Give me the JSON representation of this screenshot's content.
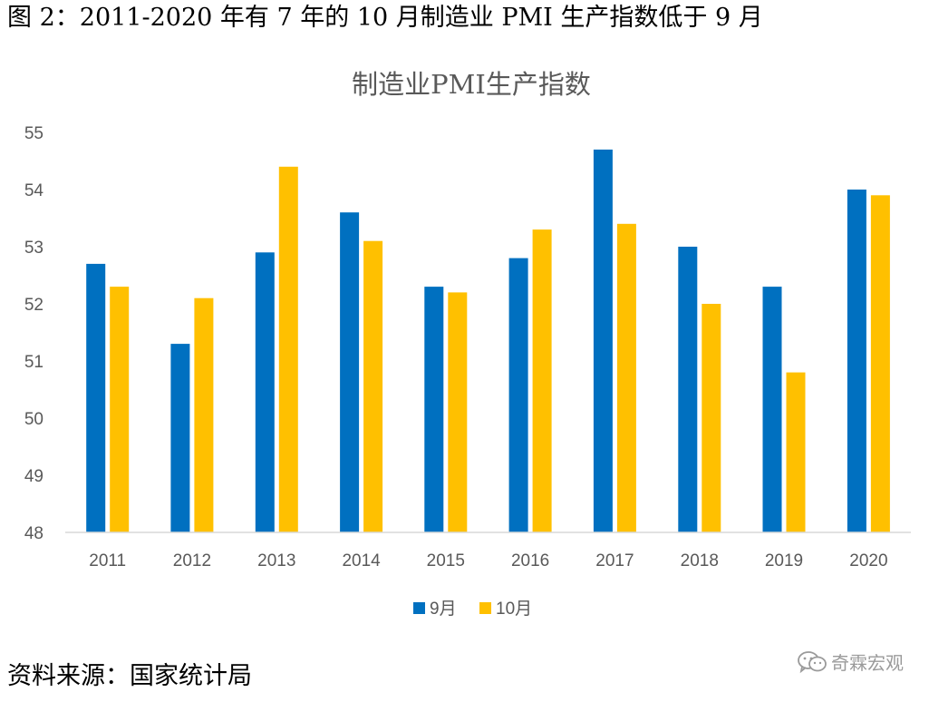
{
  "figure": {
    "caption": "图 2：2011-2020 年有 7 年的 10 月制造业 PMI 生产指数低于 9 月",
    "source": "资料来源：国家统计局",
    "watermark": "奇霖宏观"
  },
  "chart_data": {
    "type": "bar",
    "title": "制造业PMI生产指数",
    "xlabel": "",
    "ylabel": "",
    "categories": [
      "2011",
      "2012",
      "2013",
      "2014",
      "2015",
      "2016",
      "2017",
      "2018",
      "2019",
      "2020"
    ],
    "series": [
      {
        "name": "9月",
        "color": "#0070C0",
        "values": [
          52.7,
          51.3,
          52.9,
          53.6,
          52.3,
          52.8,
          54.7,
          53.0,
          52.3,
          54.0
        ]
      },
      {
        "name": "10月",
        "color": "#FFC000",
        "values": [
          52.3,
          52.1,
          54.4,
          53.1,
          52.2,
          53.3,
          53.4,
          52.0,
          50.8,
          53.9
        ]
      }
    ],
    "ylim": [
      48,
      55
    ],
    "yticks": [
      48,
      49,
      50,
      51,
      52,
      53,
      54,
      55
    ],
    "grid": false,
    "legend": "bottom"
  }
}
